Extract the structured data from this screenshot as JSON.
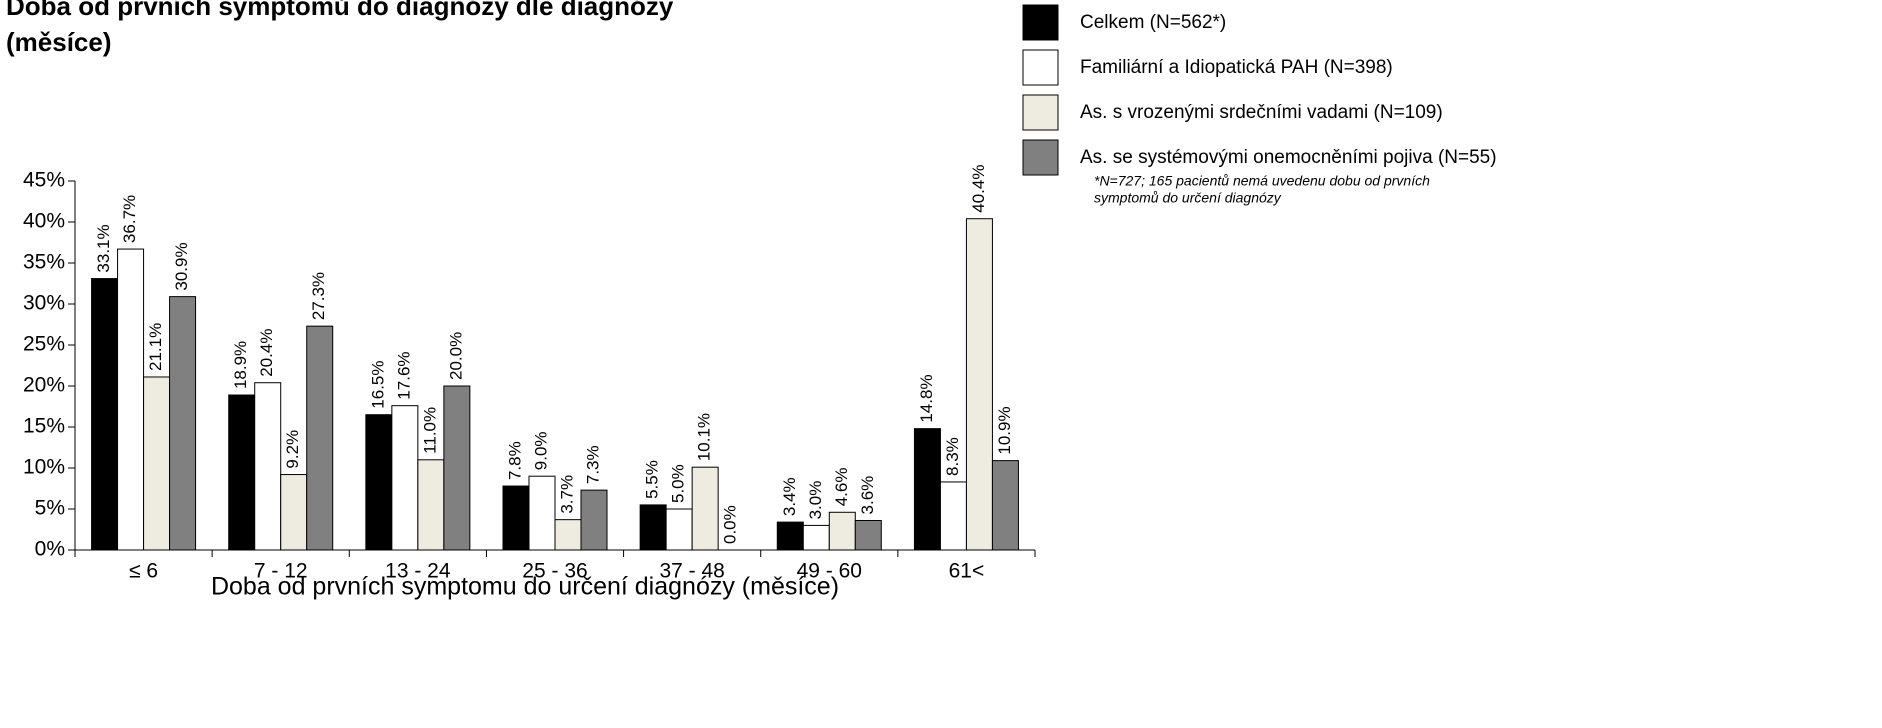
{
  "chart_data": {
    "type": "bar",
    "title": [
      "Doba od prvních symptomů do diagnózy dle diagnózy",
      "(měsíce)"
    ],
    "x_label": "Doba od prvních symptomu do určení diagnózy (měsíce)",
    "categories": [
      "≤ 6",
      "7 - 12",
      "13 - 24",
      "25 - 36",
      "37 - 48",
      "49 - 60",
      "61<"
    ],
    "series": [
      {
        "name": "Celkem (N=562*)",
        "color": "#000000",
        "values": [
          33.1,
          18.9,
          16.5,
          7.8,
          5.5,
          3.4,
          14.8
        ],
        "value_labels": [
          "33.1%",
          "18.9%",
          "16.5%",
          "7.8%",
          "5.5%",
          "3.4%",
          "14.8%"
        ]
      },
      {
        "name": "Familiární a Idiopatická PAH (N=398)",
        "color": "#ffffff",
        "values": [
          36.7,
          20.4,
          17.6,
          9.0,
          5.0,
          3.0,
          8.3
        ],
        "value_labels": [
          "36.7%",
          "20.4%",
          "17.6%",
          "9.0%",
          "5.0%",
          "3.0%",
          "8.3%"
        ]
      },
      {
        "name": "As. s vrozenými srdečními vadami (N=109)",
        "color": "#eeebe0",
        "values": [
          21.1,
          9.2,
          11.0,
          3.7,
          10.1,
          4.6,
          40.4
        ],
        "value_labels": [
          "21.1%",
          "9.2%",
          "11.0%",
          "3.7%",
          "10.1%",
          "4.6%",
          "40.4%"
        ]
      },
      {
        "name": "As. se systémovými onemocněními pojiva (N=55)",
        "color": "#808080",
        "values": [
          30.9,
          27.3,
          20.0,
          7.3,
          0.0,
          3.6,
          10.9
        ],
        "value_labels": [
          "30.9%",
          "27.3%",
          "20.0%",
          "7.3%",
          "0.0%",
          "3.6%",
          "10.9%"
        ]
      }
    ],
    "footnote": [
      "*N=727; 165 pacientů nemá uvedenu dobu od prvních",
      "symptomů do určení diagnózy"
    ],
    "ylim": [
      0,
      45
    ],
    "yticks": [
      {
        "value": 0,
        "label": "0%"
      },
      {
        "value": 5,
        "label": "5%"
      },
      {
        "value": 10,
        "label": "10%"
      },
      {
        "value": 15,
        "label": "15%"
      },
      {
        "value": 20,
        "label": "20%"
      },
      {
        "value": 25,
        "label": "25%"
      },
      {
        "value": 30,
        "label": "30%"
      },
      {
        "value": 35,
        "label": "35%"
      },
      {
        "value": 40,
        "label": "40%"
      },
      {
        "value": 45,
        "label": "45%"
      }
    ],
    "legend": "upper right",
    "grid": false
  }
}
